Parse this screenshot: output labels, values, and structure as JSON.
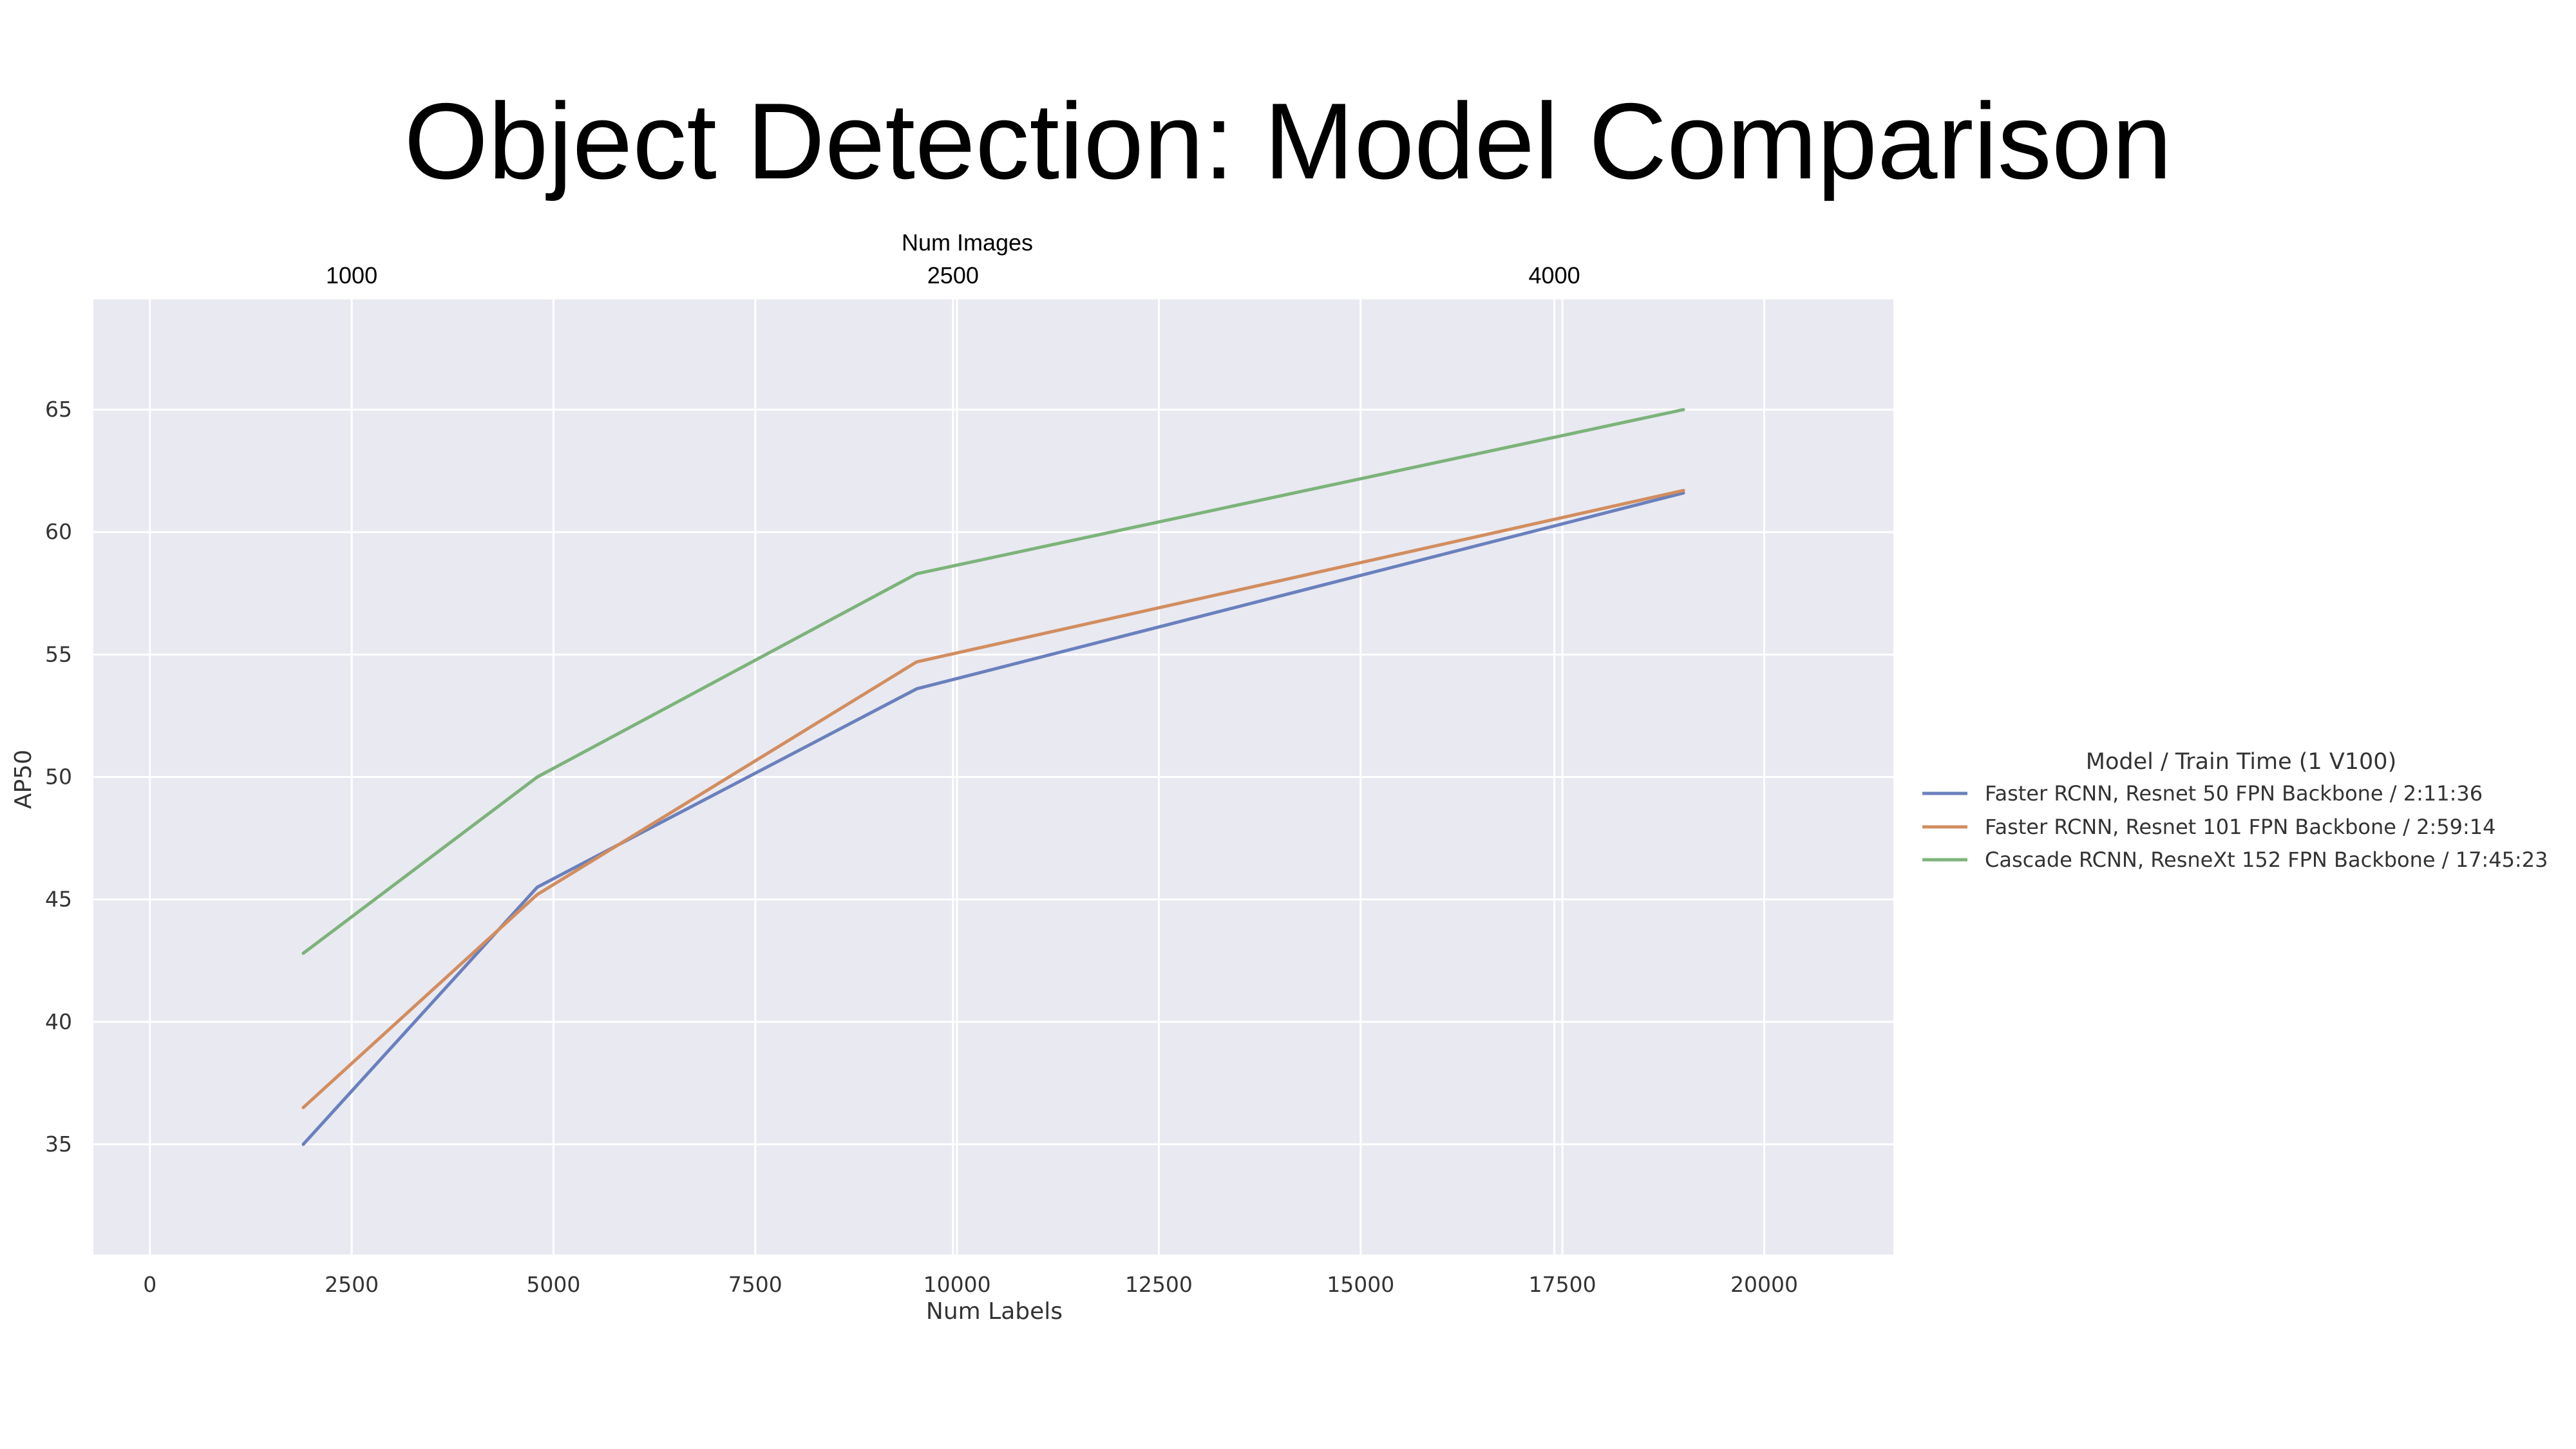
{
  "title": "Object Detection: Model Comparison",
  "colors": {
    "plot_background": "#e9e9f1",
    "grid": "#ffffff"
  },
  "chart_data": {
    "type": "line",
    "xlabel": "Num Labels",
    "ylabel": "AP50",
    "xlim": [
      -700,
      21600
    ],
    "ylim": [
      30.5,
      69.5
    ],
    "x_ticks": [
      0,
      2500,
      5000,
      7500,
      10000,
      12500,
      15000,
      17500,
      20000
    ],
    "y_ticks": [
      35,
      40,
      45,
      50,
      55,
      60,
      65
    ],
    "grid": true,
    "top_axis": {
      "label": "Num Images",
      "ticks": [
        {
          "label": "1000",
          "x": 2500
        },
        {
          "label": "2500",
          "x": 9950
        },
        {
          "label": "4000",
          "x": 17400
        }
      ]
    },
    "legend": {
      "title": "Model / Train Time (1 V100)",
      "placement": "right"
    },
    "series": [
      {
        "name": "Faster RCNN, Resnet 50 FPN Backbone / 2:11:36",
        "color": "#6a80bd",
        "x": [
          1900,
          4800,
          9500,
          19000
        ],
        "y": [
          35.0,
          45.5,
          53.6,
          61.6
        ]
      },
      {
        "name": "Faster RCNN, Resnet 101 FPN Backbone / 2:59:14",
        "color": "#d28d5f",
        "x": [
          1900,
          4800,
          9500,
          19000
        ],
        "y": [
          36.5,
          45.2,
          54.7,
          61.7
        ]
      },
      {
        "name": "Cascade RCNN, ResneXt 152 FPN Backbone  / 17:45:23",
        "color": "#7cb37a",
        "x": [
          1900,
          4800,
          9500,
          19000
        ],
        "y": [
          42.8,
          50.0,
          58.3,
          65.0
        ]
      }
    ]
  }
}
